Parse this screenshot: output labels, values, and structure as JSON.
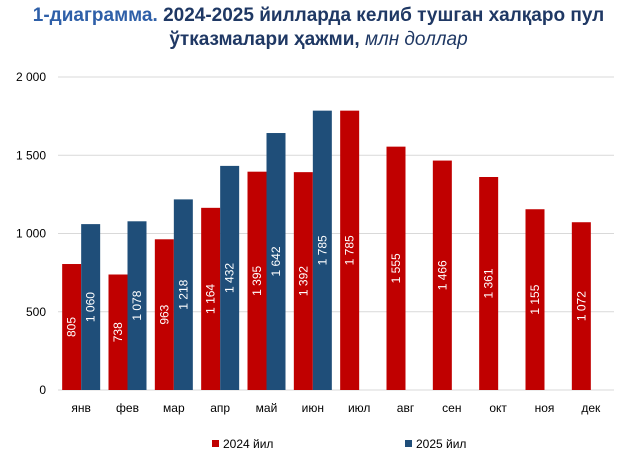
{
  "title": {
    "number": "1-диаграмма.",
    "text_line1": "2024-2025 йилларда келиб тушган халқаро пул",
    "text_line2": "ўтказмалари ҳажми,",
    "unit": "млн доллар"
  },
  "chart_data": {
    "type": "bar",
    "title": "1-диаграмма. 2024-2025 йилларда келиб тушган халқаро пул ўтказмалари ҳажми, млн доллар",
    "categories": [
      "янв",
      "фев",
      "мар",
      "апр",
      "май",
      "июн",
      "июл",
      "авг",
      "сен",
      "окт",
      "ноя",
      "дек"
    ],
    "series": [
      {
        "name": "2024 йил",
        "color": "#c00000",
        "values": [
          805,
          738,
          963,
          1164,
          1395,
          1392,
          1785,
          1555,
          1466,
          1361,
          1155,
          1072
        ]
      },
      {
        "name": "2025 йил",
        "color": "#1f4e79",
        "values": [
          1060,
          1078,
          1218,
          1432,
          1642,
          1785,
          null,
          null,
          null,
          null,
          null,
          null
        ]
      }
    ],
    "ylim": [
      0,
      2000
    ],
    "yticks": [
      0,
      500,
      1000,
      1500,
      2000
    ],
    "ytick_labels": [
      "0",
      "500",
      "1 000",
      "1 500",
      "2 000"
    ],
    "grid": true,
    "legend": "bottom",
    "xlabel": "",
    "ylabel": ""
  }
}
